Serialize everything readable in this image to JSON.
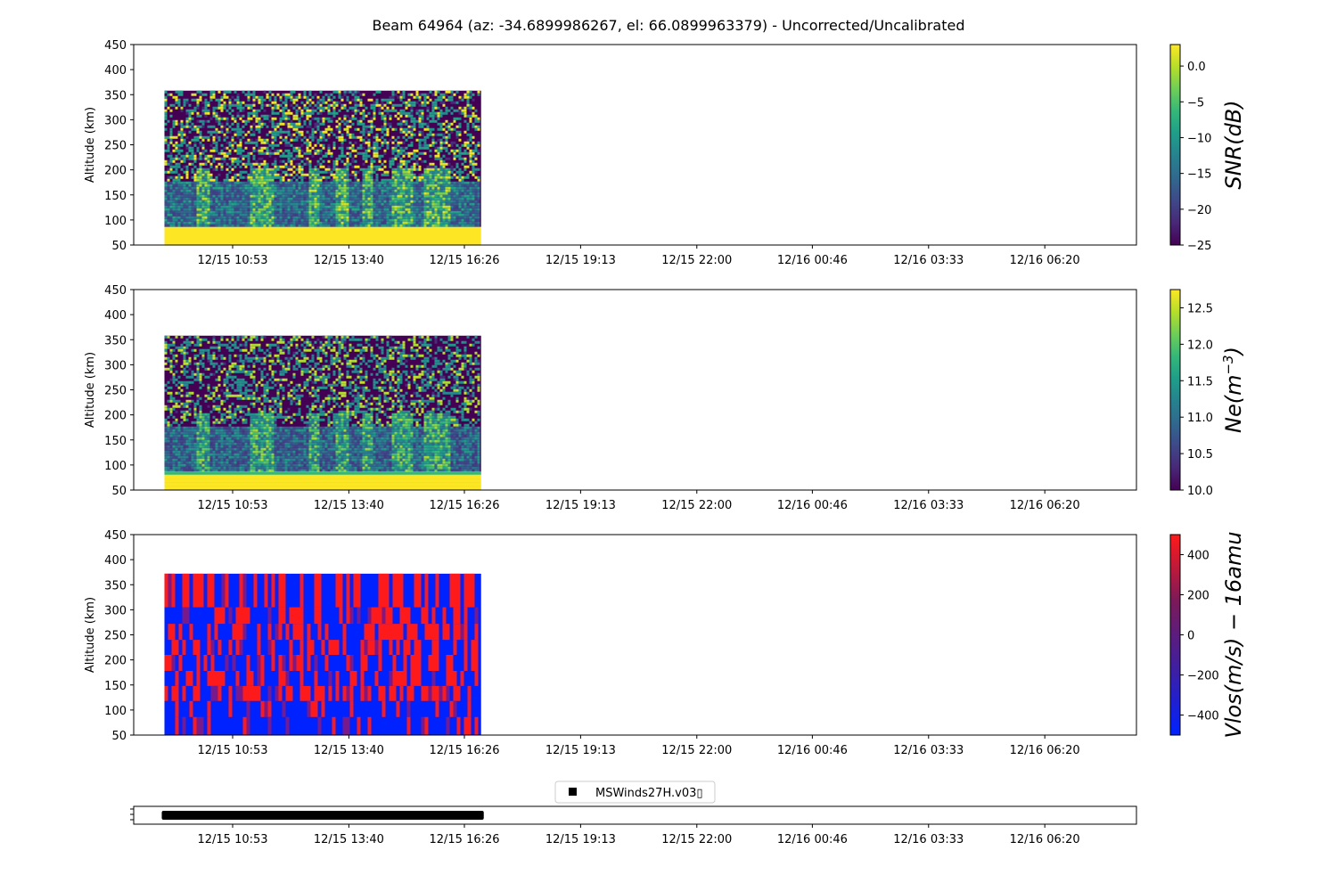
{
  "figure": {
    "title": "Beam 64964 (az: -34.6899986267, el: 66.0899963379) - Uncorrected/Uncalibrated"
  },
  "colors": {
    "axis": "#000000",
    "background": "#ffffff",
    "viridis": [
      "#440154",
      "#482878",
      "#3e4989",
      "#31688e",
      "#26828e",
      "#1f9e89",
      "#35b779",
      "#6ece58",
      "#b5de2b",
      "#fde725"
    ],
    "bwr": [
      "#0022ff",
      "#ff1a1a"
    ]
  },
  "chart_data": [
    {
      "type": "heatmap",
      "name": "snr",
      "ylabel": "Altitude (km)",
      "ylim": [
        50,
        450
      ],
      "yticks": [
        50,
        100,
        150,
        200,
        250,
        300,
        350,
        400,
        450
      ],
      "xticks": [
        "12/15 10:53",
        "12/15 13:40",
        "12/15 16:26",
        "12/15 19:13",
        "12/15 22:00",
        "12/16 00:46",
        "12/16 03:33",
        "12/16 06:20"
      ],
      "data_time_range": [
        "12/15 09:15",
        "12/15 16:50"
      ],
      "data_altitude_range": [
        50,
        358
      ],
      "colorbar": {
        "label": "SNR(dB)",
        "cmap": "viridis",
        "range": [
          -25,
          3
        ],
        "ticks": [
          0,
          -5,
          -10,
          -15,
          -20,
          -25
        ]
      }
    },
    {
      "type": "heatmap",
      "name": "ne",
      "ylabel": "Altitude (km)",
      "ylim": [
        50,
        450
      ],
      "yticks": [
        50,
        100,
        150,
        200,
        250,
        300,
        350,
        400,
        450
      ],
      "xticks": [
        "12/15 10:53",
        "12/15 13:40",
        "12/15 16:26",
        "12/15 19:13",
        "12/15 22:00",
        "12/16 00:46",
        "12/16 03:33",
        "12/16 06:20"
      ],
      "data_time_range": [
        "12/15 09:15",
        "12/15 16:50"
      ],
      "data_altitude_range": [
        50,
        358
      ],
      "colorbar": {
        "label": "Ne(m",
        "label_sup": "−3",
        "label_close": ")",
        "cmap": "viridis",
        "range": [
          10.0,
          12.75
        ],
        "ticks": [
          12.5,
          12.0,
          11.5,
          11.0,
          10.5,
          10.0
        ]
      }
    },
    {
      "type": "heatmap",
      "name": "vlos",
      "ylabel": "Altitude (km)",
      "ylim": [
        50,
        450
      ],
      "yticks": [
        50,
        100,
        150,
        200,
        250,
        300,
        350,
        400,
        450
      ],
      "xticks": [
        "12/15 10:53",
        "12/15 13:40",
        "12/15 16:26",
        "12/15 19:13",
        "12/15 22:00",
        "12/16 00:46",
        "12/16 03:33",
        "12/16 06:20"
      ],
      "data_time_range": [
        "12/15 09:15",
        "12/15 16:50"
      ],
      "data_altitude_range": [
        50,
        372
      ],
      "colorbar": {
        "label": "Vlos(m/s) − 16amu",
        "cmap": "bwr",
        "range": [
          -500,
          500
        ],
        "ticks": [
          400,
          200,
          0,
          -200,
          -400
        ]
      }
    },
    {
      "type": "line",
      "name": "timeline",
      "legend": {
        "label": "MSWinds27H.v03▯",
        "placement": "top-center"
      },
      "xticks": [
        "12/15 10:53",
        "12/15 13:40",
        "12/15 16:26",
        "12/15 19:13",
        "12/15 22:00",
        "12/16 00:46",
        "12/16 03:33",
        "12/16 06:20"
      ],
      "series": [
        {
          "time_range": [
            "12/15 09:15",
            "12/15 16:50"
          ]
        }
      ]
    }
  ]
}
